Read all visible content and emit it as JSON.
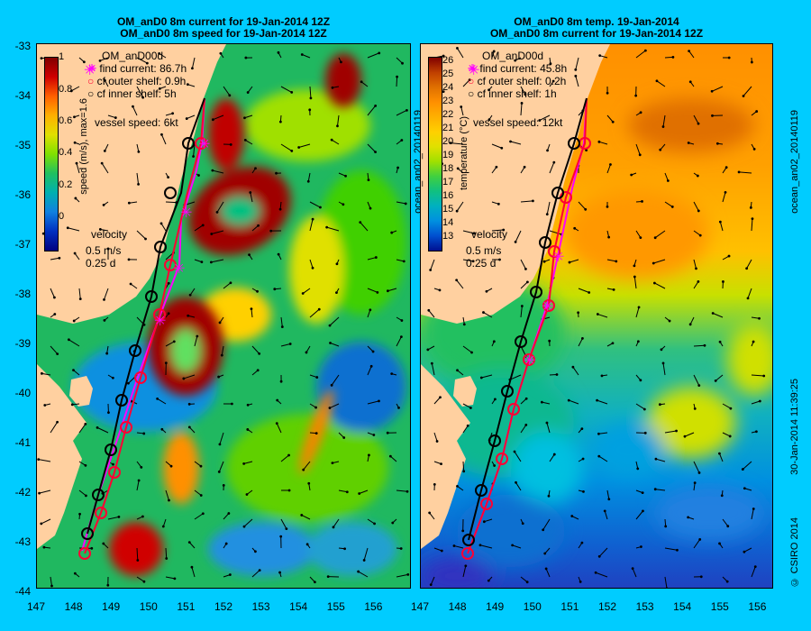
{
  "left_panel": {
    "title_line1": "OM_anD0 8m current for 19-Jan-2014 12Z",
    "title_line2": "OM_anD0 8m speed for 19-Jan-2014 12Z",
    "legend_title": "OM_anD00d",
    "find_current": "find current: 86.7h",
    "cf_outer": "cf outer shelf: 0.9h",
    "cf_inner": "cf inner shelf: 5h",
    "vessel_speed": "vessel speed: 6kt",
    "velocity_label": "velocity",
    "velocity_scale1": "0.5 m/s",
    "velocity_scale2": "0.25 d",
    "colorbar_label": "speed (m/s),  max=1.6",
    "colorbar_ticks": [
      "1",
      "0.8",
      "0.6",
      "0.4",
      "0.2",
      "0"
    ],
    "side_label": "ocean_an02_20140119"
  },
  "right_panel": {
    "title_line1": "OM_anD0 8m temp. 19-Jan-2014",
    "title_line2": "OM_anD0 8m current for 19-Jan-2014 12Z",
    "legend_title": "OM_anD00d",
    "find_current": "find current: 45.8h",
    "cf_outer": "cf outer shelf: 0.2h",
    "cf_inner": "cf inner shelf: 1h",
    "vessel_speed": "vessel speed: 12kt",
    "velocity_label": "velocity",
    "velocity_scale1": "0.5 m/s",
    "velocity_scale2": "0.25 d",
    "colorbar_label": "temperature (°C)",
    "colorbar_ticks": [
      "26",
      "25",
      "24",
      "23",
      "22",
      "21",
      "20",
      "19",
      "18",
      "17",
      "16",
      "15",
      "14",
      "13"
    ],
    "side_label": "ocean_an02_20140119",
    "timestamp": "30-Jan-2014 11:39:25",
    "copyright": "© CSIRO 2014"
  },
  "axes": {
    "y_ticks": [
      "-33",
      "-34",
      "-35",
      "-36",
      "-37",
      "-38",
      "-39",
      "-40",
      "-41",
      "-42",
      "-43",
      "-44"
    ],
    "x_ticks": [
      "147",
      "148",
      "149",
      "150",
      "151",
      "152",
      "153",
      "154",
      "155",
      "156"
    ]
  },
  "colors": {
    "background": "#00ccff",
    "land": "#ffd0a0",
    "find_current": "#ff00ff",
    "cf_outer": "#ff0033",
    "cf_inner": "#000000"
  }
}
